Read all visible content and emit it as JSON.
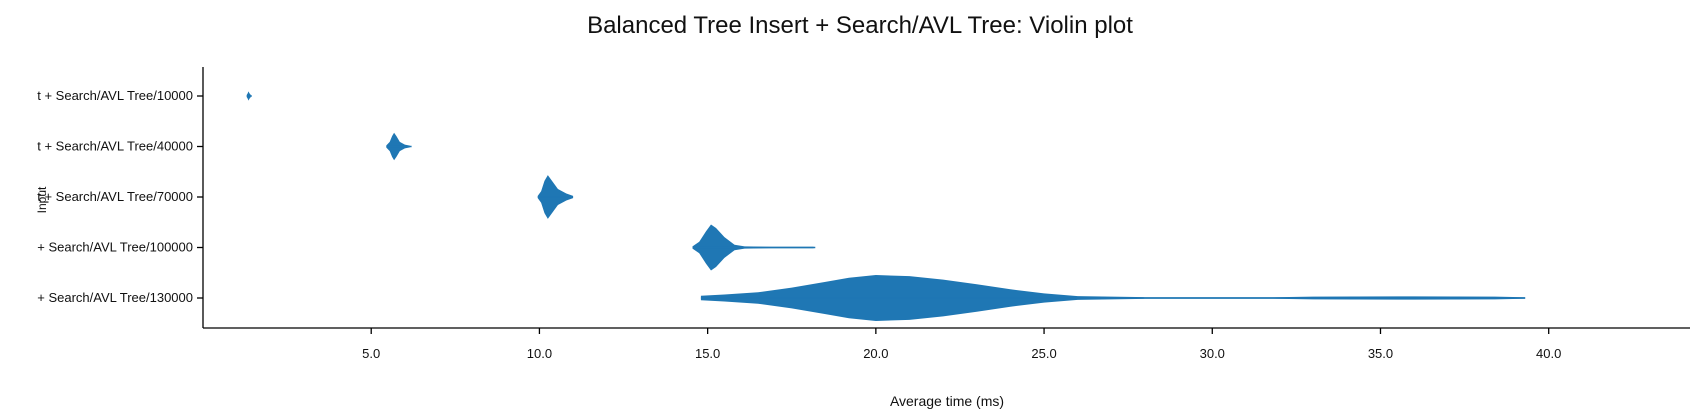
{
  "chart_data": {
    "type": "violin",
    "title": "Balanced Tree Insert + Search/AVL Tree: Violin plot",
    "xlabel": "Average time (ms)",
    "ylabel": "Input",
    "xlim": [
      0.0,
      44.2
    ],
    "xticks": [
      "5.0",
      "10.0",
      "15.0",
      "20.0",
      "25.0",
      "30.0",
      "35.0",
      "40.0"
    ],
    "xtick_values": [
      5,
      10,
      15,
      20,
      25,
      30,
      35,
      40
    ],
    "color": "#1f77b4",
    "series": [
      {
        "name": "t + Search/AVL Tree/10000",
        "profile": [
          [
            1.3,
            0.05
          ],
          [
            1.33,
            0.12
          ],
          [
            1.35,
            0.2
          ],
          [
            1.38,
            0.12
          ],
          [
            1.42,
            0.05
          ]
        ],
        "min": 1.3,
        "max": 1.45
      },
      {
        "name": "t + Search/AVL Tree/40000",
        "profile": [
          [
            5.45,
            0.05
          ],
          [
            5.55,
            0.2
          ],
          [
            5.62,
            0.45
          ],
          [
            5.68,
            0.6
          ],
          [
            5.75,
            0.45
          ],
          [
            5.85,
            0.2
          ],
          [
            6.0,
            0.08
          ],
          [
            6.15,
            0.04
          ]
        ],
        "min": 5.45,
        "max": 6.2
      },
      {
        "name": "t + Search/AVL Tree/70000",
        "profile": [
          [
            9.95,
            0.05
          ],
          [
            10.05,
            0.25
          ],
          [
            10.15,
            0.7
          ],
          [
            10.25,
            0.95
          ],
          [
            10.35,
            0.75
          ],
          [
            10.55,
            0.35
          ],
          [
            10.8,
            0.15
          ],
          [
            11.0,
            0.05
          ]
        ],
        "min": 9.95,
        "max": 11.0
      },
      {
        "name": "+ Search/AVL Tree/100000",
        "profile": [
          [
            14.55,
            0.05
          ],
          [
            14.75,
            0.25
          ],
          [
            14.95,
            0.7
          ],
          [
            15.1,
            1.0
          ],
          [
            15.25,
            0.85
          ],
          [
            15.5,
            0.45
          ],
          [
            15.8,
            0.12
          ],
          [
            16.1,
            0.05
          ],
          [
            16.9,
            0.03
          ],
          [
            18.15,
            0.02
          ]
        ],
        "min": 14.55,
        "max": 18.2
      },
      {
        "name": "+ Search/AVL Tree/130000",
        "profile": [
          [
            14.8,
            0.1
          ],
          [
            15.5,
            0.15
          ],
          [
            16.5,
            0.25
          ],
          [
            17.5,
            0.45
          ],
          [
            18.5,
            0.7
          ],
          [
            19.2,
            0.88
          ],
          [
            20.0,
            1.0
          ],
          [
            21.0,
            0.95
          ],
          [
            22.0,
            0.8
          ],
          [
            23.0,
            0.6
          ],
          [
            24.0,
            0.38
          ],
          [
            25.0,
            0.2
          ],
          [
            26.0,
            0.08
          ],
          [
            28.0,
            0.02
          ],
          [
            31.8,
            0.02
          ],
          [
            33.0,
            0.06
          ],
          [
            36.0,
            0.07
          ],
          [
            38.4,
            0.06
          ],
          [
            39.3,
            0.02
          ]
        ],
        "min": 14.8,
        "max": 39.3
      }
    ]
  }
}
